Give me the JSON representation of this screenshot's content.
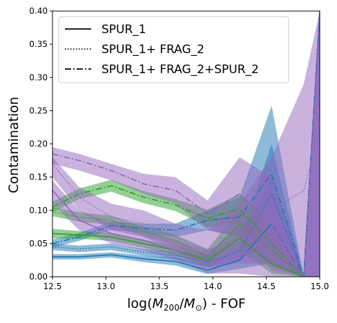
{
  "chart_data": {
    "type": "line",
    "xlabel_pre": "log(",
    "xlabel_m": "M",
    "xlabel_sub1": "200",
    "xlabel_slash": "/",
    "xlabel_sub2": "⊙",
    "xlabel_post": ") - FOF",
    "ylabel": "Contamination",
    "xlim": [
      12.5,
      15.0
    ],
    "ylim": [
      0.0,
      0.4
    ],
    "xticks": [
      "12.5",
      "13.0",
      "13.5",
      "14.0",
      "14.5",
      "15.0"
    ],
    "yticks": [
      "0.00",
      "0.05",
      "0.10",
      "0.15",
      "0.20",
      "0.25",
      "0.30",
      "0.35",
      "0.40"
    ],
    "legend": {
      "placement": "upper-left",
      "entries": [
        {
          "label": "SPUR_1",
          "linestyle": "solid"
        },
        {
          "label": "SPUR_1+ FRAG_2",
          "linestyle": "dotted"
        },
        {
          "label": "SPUR_1+ FRAG_2+SPUR_2",
          "linestyle": "dashdot"
        }
      ]
    },
    "colors": {
      "blue": "#1f77b4",
      "green": "#2ca02c",
      "purple": "#9467bd"
    },
    "series": [
      {
        "color": "blue",
        "linestyle": "solid",
        "x": [
          12.5,
          12.75,
          13.05,
          13.35,
          13.65,
          13.95,
          14.25,
          14.55,
          14.85,
          15.0
        ],
        "y": [
          0.03,
          0.03,
          0.033,
          0.027,
          0.023,
          0.01,
          0.025,
          0.08,
          0.0,
          0.0
        ],
        "lo": [
          0.026,
          0.026,
          0.029,
          0.022,
          0.017,
          0.004,
          0.012,
          0.02,
          0.0,
          0.0
        ],
        "hi": [
          0.034,
          0.034,
          0.037,
          0.032,
          0.029,
          0.018,
          0.045,
          0.15,
          0.0,
          0.0
        ]
      },
      {
        "color": "blue",
        "linestyle": "dotted",
        "x": [
          12.5,
          12.75,
          13.05,
          13.35,
          13.65,
          13.95,
          14.25,
          14.55,
          14.85,
          15.0
        ],
        "y": [
          0.045,
          0.042,
          0.045,
          0.037,
          0.032,
          0.022,
          0.038,
          0.125,
          0.0,
          0.0
        ],
        "lo": [
          0.04,
          0.037,
          0.04,
          0.032,
          0.026,
          0.014,
          0.025,
          0.05,
          0.0,
          0.0
        ],
        "hi": [
          0.05,
          0.047,
          0.05,
          0.042,
          0.038,
          0.03,
          0.055,
          0.2,
          0.0,
          0.0
        ]
      },
      {
        "color": "blue",
        "linestyle": "dashdot",
        "x": [
          12.5,
          12.75,
          13.05,
          13.35,
          13.65,
          13.95,
          14.25,
          14.55,
          14.85,
          15.0
        ],
        "y": [
          0.05,
          0.06,
          0.077,
          0.073,
          0.07,
          0.085,
          0.09,
          0.155,
          0.0,
          0.4
        ],
        "lo": [
          0.044,
          0.054,
          0.071,
          0.066,
          0.06,
          0.07,
          0.06,
          0.06,
          0.0,
          0.0
        ],
        "hi": [
          0.056,
          0.066,
          0.083,
          0.08,
          0.08,
          0.1,
          0.12,
          0.258,
          0.0,
          0.4
        ]
      },
      {
        "color": "green",
        "linestyle": "solid",
        "x": [
          12.5,
          12.75,
          13.05,
          13.35,
          13.65,
          13.95,
          14.25,
          14.55,
          14.85,
          15.0
        ],
        "y": [
          0.065,
          0.063,
          0.06,
          0.05,
          0.04,
          0.025,
          0.058,
          0.02,
          0.0,
          0.0
        ],
        "lo": [
          0.058,
          0.057,
          0.054,
          0.044,
          0.033,
          0.015,
          0.04,
          0.005,
          0.0,
          0.0
        ],
        "hi": [
          0.072,
          0.069,
          0.066,
          0.056,
          0.047,
          0.035,
          0.078,
          0.045,
          0.0,
          0.0
        ]
      },
      {
        "color": "green",
        "linestyle": "dotted",
        "x": [
          12.5,
          12.75,
          13.05,
          13.35,
          13.65,
          13.95,
          14.25,
          14.55,
          14.85,
          15.0
        ],
        "y": [
          0.098,
          0.09,
          0.085,
          0.068,
          0.055,
          0.03,
          0.08,
          0.04,
          0.0,
          0.0
        ],
        "lo": [
          0.091,
          0.083,
          0.078,
          0.061,
          0.047,
          0.018,
          0.06,
          0.015,
          0.0,
          0.0
        ],
        "hi": [
          0.105,
          0.097,
          0.092,
          0.075,
          0.063,
          0.042,
          0.1,
          0.07,
          0.0,
          0.0
        ]
      },
      {
        "color": "green",
        "linestyle": "dashdot",
        "x": [
          12.5,
          12.75,
          13.05,
          13.35,
          13.65,
          13.95,
          14.25,
          14.55,
          14.85,
          15.0
        ],
        "y": [
          0.105,
          0.125,
          0.137,
          0.12,
          0.108,
          0.088,
          0.102,
          0.05,
          0.0,
          0.0
        ],
        "lo": [
          0.097,
          0.117,
          0.128,
          0.111,
          0.099,
          0.075,
          0.08,
          0.02,
          0.0,
          0.0
        ],
        "hi": [
          0.113,
          0.133,
          0.146,
          0.129,
          0.117,
          0.101,
          0.125,
          0.085,
          0.0,
          0.0
        ]
      },
      {
        "color": "purple",
        "linestyle": "solid",
        "x": [
          12.5,
          12.75,
          13.05,
          13.35,
          13.65,
          13.95,
          14.25,
          14.55,
          14.85,
          15.0
        ],
        "y": [
          0.13,
          0.085,
          0.065,
          0.055,
          0.04,
          0.02,
          0.03,
          0.06,
          0.0,
          0.0
        ],
        "lo": [
          0.11,
          0.07,
          0.05,
          0.04,
          0.025,
          0.005,
          0.005,
          0.0,
          0.0,
          0.0
        ],
        "hi": [
          0.145,
          0.1,
          0.08,
          0.07,
          0.055,
          0.04,
          0.06,
          0.12,
          0.0,
          0.4
        ]
      },
      {
        "color": "purple",
        "linestyle": "dotted",
        "x": [
          12.5,
          12.75,
          13.05,
          13.35,
          13.65,
          13.95,
          14.25,
          14.55,
          14.85,
          15.0
        ],
        "y": [
          0.17,
          0.12,
          0.09,
          0.08,
          0.06,
          0.04,
          0.06,
          0.1,
          0.13,
          0.22
        ],
        "lo": [
          0.15,
          0.1,
          0.07,
          0.06,
          0.04,
          0.015,
          0.02,
          0.02,
          0.0,
          0.0
        ],
        "hi": [
          0.18,
          0.135,
          0.11,
          0.1,
          0.08,
          0.07,
          0.11,
          0.18,
          0.29,
          0.4
        ]
      },
      {
        "color": "purple",
        "linestyle": "dashdot",
        "x": [
          12.5,
          12.75,
          13.05,
          13.35,
          13.65,
          13.95,
          14.25,
          14.55,
          14.85,
          15.0
        ],
        "y": [
          0.185,
          0.175,
          0.16,
          0.14,
          0.13,
          0.095,
          0.125,
          0.08,
          0.0,
          0.4
        ],
        "lo": [
          0.17,
          0.16,
          0.145,
          0.125,
          0.11,
          0.07,
          0.06,
          0.01,
          0.0,
          0.0
        ],
        "hi": [
          0.195,
          0.185,
          0.17,
          0.155,
          0.15,
          0.115,
          0.18,
          0.15,
          0.0,
          0.4
        ]
      }
    ]
  }
}
